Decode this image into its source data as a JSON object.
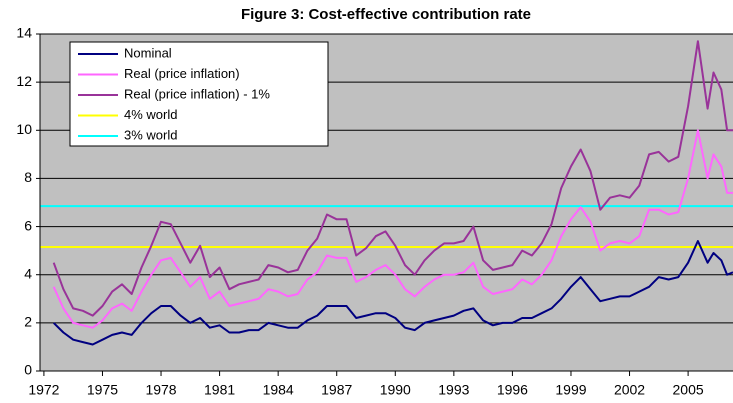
{
  "chart_data": {
    "type": "line",
    "title": "Figure 3: Cost-effective contribution rate",
    "x": [
      1972.5,
      1973,
      1973.5,
      1974,
      1974.5,
      1975,
      1975.5,
      1976,
      1976.5,
      1977,
      1977.5,
      1978,
      1978.5,
      1979,
      1979.5,
      1980,
      1980.5,
      1981,
      1981.5,
      1982,
      1982.5,
      1983,
      1983.5,
      1984,
      1984.5,
      1985,
      1985.5,
      1986,
      1986.5,
      1987,
      1987.5,
      1988,
      1988.5,
      1989,
      1989.5,
      1990,
      1990.5,
      1991,
      1991.5,
      1992,
      1992.5,
      1993,
      1993.5,
      1994,
      1994.5,
      1995,
      1995.5,
      1996,
      1996.5,
      1997,
      1997.5,
      1998,
      1998.5,
      1999,
      1999.5,
      2000,
      2000.5,
      2001,
      2001.5,
      2002,
      2002.5,
      2003,
      2003.5,
      2004,
      2004.5,
      2005,
      2005.5,
      2006,
      2006.3,
      2006.7,
      2007,
      2007.3
    ],
    "series": [
      {
        "name": "Nominal",
        "color": "#000080",
        "values": [
          2.0,
          1.6,
          1.3,
          1.2,
          1.1,
          1.3,
          1.5,
          1.6,
          1.5,
          2.0,
          2.4,
          2.7,
          2.7,
          2.3,
          2.0,
          2.2,
          1.8,
          1.9,
          1.6,
          1.6,
          1.7,
          1.7,
          2.0,
          1.9,
          1.8,
          1.8,
          2.1,
          2.3,
          2.7,
          2.7,
          2.7,
          2.2,
          2.3,
          2.4,
          2.4,
          2.2,
          1.8,
          1.7,
          2.0,
          2.1,
          2.2,
          2.3,
          2.5,
          2.6,
          2.1,
          1.9,
          2.0,
          2.0,
          2.2,
          2.2,
          2.4,
          2.6,
          3.0,
          3.5,
          3.9,
          3.4,
          2.9,
          3.0,
          3.1,
          3.1,
          3.3,
          3.5,
          3.9,
          3.8,
          3.9,
          4.5,
          5.4,
          4.5,
          4.9,
          4.6,
          4.0,
          4.1
        ]
      },
      {
        "name": "Real (price inflation)",
        "color": "#ff66ff",
        "values": [
          3.5,
          2.6,
          2.0,
          1.9,
          1.8,
          2.1,
          2.6,
          2.8,
          2.5,
          3.3,
          4.0,
          4.6,
          4.7,
          4.1,
          3.5,
          3.9,
          3.0,
          3.3,
          2.7,
          2.8,
          2.9,
          3.0,
          3.4,
          3.3,
          3.1,
          3.2,
          3.8,
          4.1,
          4.8,
          4.7,
          4.7,
          3.7,
          3.9,
          4.2,
          4.4,
          4.0,
          3.4,
          3.1,
          3.5,
          3.8,
          4.0,
          4.0,
          4.1,
          4.5,
          3.5,
          3.2,
          3.3,
          3.4,
          3.8,
          3.6,
          4.0,
          4.6,
          5.6,
          6.3,
          6.8,
          6.2,
          5.0,
          5.3,
          5.4,
          5.3,
          5.6,
          6.7,
          6.7,
          6.5,
          6.6,
          8.0,
          10.0,
          8.0,
          9.0,
          8.5,
          7.4,
          7.4
        ]
      },
      {
        "name": "Real (price inflation) - 1%",
        "color": "#993399",
        "values": [
          4.5,
          3.4,
          2.6,
          2.5,
          2.3,
          2.7,
          3.3,
          3.6,
          3.2,
          4.3,
          5.2,
          6.2,
          6.1,
          5.3,
          4.5,
          5.2,
          3.9,
          4.3,
          3.4,
          3.6,
          3.7,
          3.8,
          4.4,
          4.3,
          4.1,
          4.2,
          5.0,
          5.5,
          6.5,
          6.3,
          6.3,
          4.8,
          5.1,
          5.6,
          5.8,
          5.2,
          4.4,
          4.0,
          4.6,
          5.0,
          5.3,
          5.3,
          5.4,
          6.0,
          4.6,
          4.2,
          4.3,
          4.4,
          5.0,
          4.8,
          5.3,
          6.1,
          7.6,
          8.5,
          9.2,
          8.3,
          6.7,
          7.2,
          7.3,
          7.2,
          7.7,
          9.0,
          9.1,
          8.7,
          8.9,
          11.0,
          13.7,
          10.9,
          12.4,
          11.7,
          10.0,
          10.0
        ]
      }
    ],
    "levels": [
      {
        "name": "4% world",
        "color": "#ffff00",
        "value": 5.15
      },
      {
        "name": "3% world",
        "color": "#00ffff",
        "value": 6.85
      }
    ],
    "xlim": [
      1971.8,
      2007.3
    ],
    "xticks": [
      1972,
      1975,
      1978,
      1981,
      1984,
      1987,
      1990,
      1993,
      1996,
      1999,
      2002,
      2005
    ],
    "ylim": [
      0,
      14
    ],
    "yticks": [
      0,
      2,
      4,
      6,
      8,
      10,
      12,
      14
    ],
    "grid": true
  }
}
